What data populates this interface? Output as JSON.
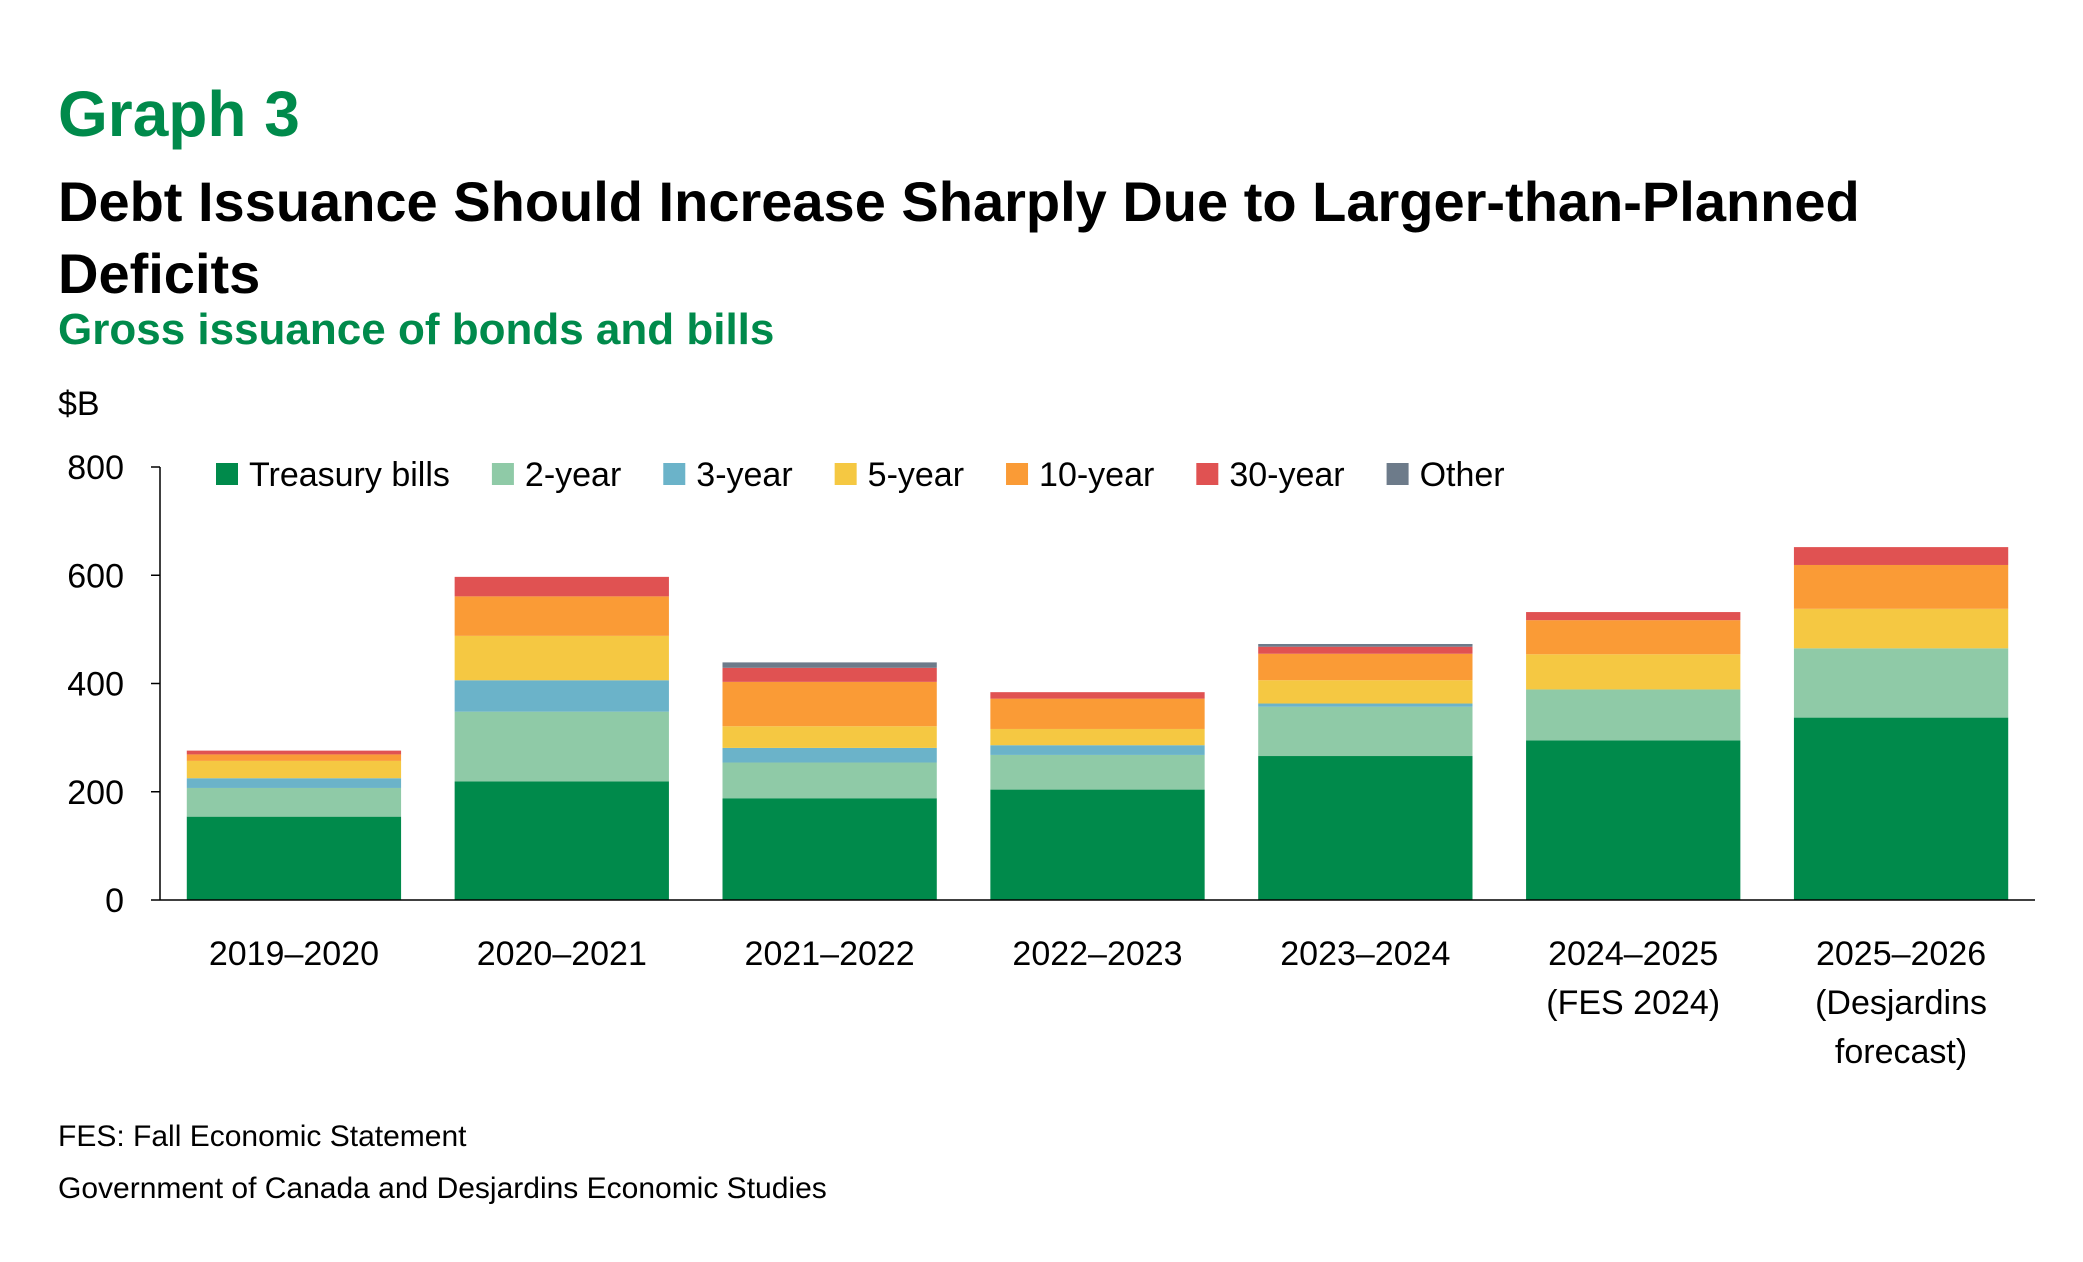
{
  "header": {
    "graph_label": "Graph 3",
    "title": "Debt Issuance Should Increase Sharply Due to Larger-than-Planned Deficits",
    "subtitle": "Gross issuance of bonds and bills"
  },
  "footer": {
    "note": "FES: Fall Economic Statement",
    "source": "Government of Canada and Desjardins Economic Studies"
  },
  "chart_data": {
    "type": "bar",
    "stacked": true,
    "unit_label": "$B",
    "ylim": [
      0,
      800
    ],
    "yticks": [
      0,
      200,
      400,
      600,
      800
    ],
    "grid": false,
    "legend_position": "top",
    "categories": [
      [
        "2019–2020"
      ],
      [
        "2020–2021"
      ],
      [
        "2021–2022"
      ],
      [
        "2022–2023"
      ],
      [
        "2023–2024"
      ],
      [
        "2024–2025",
        "(FES 2024)"
      ],
      [
        "2025–2026",
        "(Desjardins",
        "forecast)"
      ]
    ],
    "series": [
      {
        "name": "Treasury bills",
        "color": "#008a4b",
        "values": [
          154,
          219,
          188,
          204,
          266,
          295,
          337
        ]
      },
      {
        "name": "2-year",
        "color": "#8fcaa7",
        "values": [
          53,
          129,
          66,
          64,
          91,
          94,
          128
        ]
      },
      {
        "name": "3-year",
        "color": "#6bb3c9",
        "values": [
          18,
          58,
          27,
          18,
          6,
          0,
          0
        ]
      },
      {
        "name": "5-year",
        "color": "#f5c842",
        "values": [
          32,
          82,
          40,
          30,
          43,
          65,
          73
        ]
      },
      {
        "name": "10-year",
        "color": "#fa9b36",
        "values": [
          12,
          73,
          82,
          56,
          49,
          63,
          81
        ]
      },
      {
        "name": "30-year",
        "color": "#e05252",
        "values": [
          7,
          36,
          26,
          12,
          13,
          15,
          33
        ]
      },
      {
        "name": "Other",
        "color": "#6d7b8a",
        "values": [
          0,
          0,
          10,
          0,
          5,
          0,
          0
        ]
      }
    ]
  }
}
